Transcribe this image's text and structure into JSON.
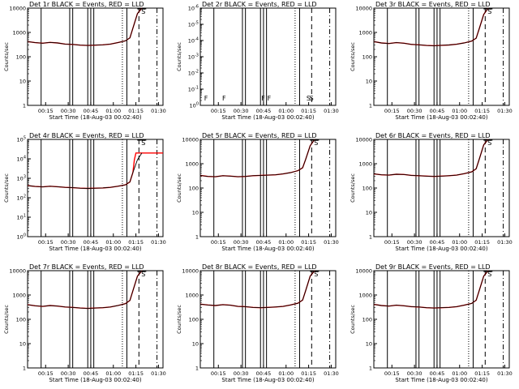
{
  "figure": {
    "xlabel": "Start Time (18-Aug-03 00:02:40)",
    "ylabel": "Counts/sec",
    "x_tick_labels": [
      "00:15",
      "00:30",
      "00:45",
      "01:00",
      "01:15",
      "01:30"
    ],
    "flag_labels": {
      "F": "F",
      "S": "S"
    },
    "colors": {
      "events": "#000000",
      "lld": "#ff0000"
    }
  },
  "chart_data": [
    {
      "type": "line",
      "title": "Det 1r BLACK = Events, RED = LLD",
      "y_scale": "log",
      "ylim": [
        1,
        10000
      ],
      "y_ticks": [
        "1",
        "10",
        "100",
        "1000",
        "10000"
      ],
      "series": [
        {
          "name": "Events",
          "color": "#000000",
          "x": [
            0,
            5,
            10,
            15,
            20,
            25,
            30,
            35,
            40,
            45,
            50,
            55,
            60,
            65,
            68,
            70,
            73,
            76
          ],
          "y": [
            420,
            380,
            360,
            390,
            370,
            330,
            320,
            300,
            290,
            300,
            310,
            330,
            380,
            450,
            600,
            1500,
            6000,
            12000
          ]
        },
        {
          "name": "LLD",
          "color": "#ff0000",
          "x": [
            0,
            5,
            10,
            15,
            20,
            25,
            30,
            35,
            40,
            45,
            50,
            55,
            60,
            65,
            68,
            70,
            73,
            76
          ],
          "y": [
            420,
            380,
            360,
            390,
            370,
            330,
            320,
            300,
            290,
            300,
            310,
            330,
            380,
            450,
            600,
            1500,
            6000,
            12000
          ]
        }
      ]
    },
    {
      "type": "line",
      "title": "Det 2r BLACK = Events, RED = LLD",
      "y_scale": "log",
      "ylim": [
        1,
        1e-06
      ],
      "y_ticks": [
        "10^0",
        "10^-1",
        "10^-2",
        "10^-3",
        "10^-4",
        "10^-5",
        "10^-6"
      ],
      "series": []
    },
    {
      "type": "line",
      "title": "Det 3r BLACK = Events, RED = LLD",
      "y_scale": "log",
      "ylim": [
        1,
        10000
      ],
      "y_ticks": [
        "1",
        "10",
        "100",
        "1000",
        "10000"
      ],
      "series": [
        {
          "name": "Events",
          "color": "#000000",
          "x": [
            0,
            5,
            10,
            15,
            20,
            25,
            30,
            35,
            40,
            45,
            50,
            55,
            60,
            65,
            68,
            70,
            73,
            76
          ],
          "y": [
            420,
            370,
            350,
            380,
            360,
            320,
            310,
            290,
            285,
            295,
            305,
            325,
            370,
            440,
            580,
            1400,
            5500,
            11000
          ]
        },
        {
          "name": "LLD",
          "color": "#ff0000",
          "x": [
            0,
            5,
            10,
            15,
            20,
            25,
            30,
            35,
            40,
            45,
            50,
            55,
            60,
            65,
            68,
            70,
            73,
            76
          ],
          "y": [
            420,
            370,
            350,
            380,
            360,
            320,
            310,
            290,
            285,
            295,
            305,
            325,
            370,
            440,
            580,
            1400,
            5500,
            11000
          ]
        }
      ]
    },
    {
      "type": "line",
      "title": "Det 4r BLACK = Events, RED = LLD",
      "y_scale": "log",
      "ylim": [
        1,
        100000
      ],
      "y_ticks": [
        "10^0",
        "10^1",
        "10^2",
        "10^3",
        "10^4",
        "10^5"
      ],
      "series": [
        {
          "name": "Events",
          "color": "#000000",
          "x": [
            0,
            5,
            10,
            15,
            20,
            25,
            30,
            35,
            40,
            45,
            50,
            55,
            60,
            65,
            68,
            70,
            73,
            76
          ],
          "y": [
            420,
            380,
            360,
            390,
            370,
            340,
            330,
            310,
            300,
            310,
            320,
            340,
            390,
            460,
            650,
            2000,
            9000,
            20000
          ]
        },
        {
          "name": "LLD",
          "color": "#ff0000",
          "x": [
            0,
            5,
            10,
            15,
            20,
            25,
            30,
            35,
            40,
            45,
            50,
            55,
            60,
            65,
            68,
            70,
            71,
            72,
            80,
            90
          ],
          "y": [
            420,
            380,
            360,
            390,
            370,
            340,
            330,
            310,
            300,
            310,
            320,
            340,
            390,
            460,
            650,
            2000,
            9000,
            20000,
            20000,
            20000
          ]
        }
      ]
    },
    {
      "type": "line",
      "title": "Det 5r BLACK = Events, RED = LLD",
      "y_scale": "log",
      "ylim": [
        1,
        10000
      ],
      "y_ticks": [
        "1",
        "10",
        "100",
        "1000",
        "10000"
      ],
      "series": [
        {
          "name": "Events",
          "color": "#000000",
          "x": [
            0,
            5,
            10,
            15,
            20,
            25,
            30,
            35,
            40,
            45,
            50,
            55,
            60,
            65,
            68,
            70,
            73,
            76
          ],
          "y": [
            330,
            300,
            290,
            320,
            310,
            290,
            300,
            320,
            330,
            340,
            350,
            380,
            430,
            520,
            680,
            1500,
            5500,
            11000
          ]
        },
        {
          "name": "LLD",
          "color": "#ff0000",
          "x": [
            0,
            5,
            10,
            15,
            20,
            25,
            30,
            35,
            40,
            45,
            50,
            55,
            60,
            65,
            68,
            70,
            73,
            76
          ],
          "y": [
            330,
            300,
            290,
            320,
            310,
            290,
            300,
            320,
            330,
            340,
            350,
            380,
            430,
            520,
            680,
            1500,
            5500,
            11000
          ]
        }
      ]
    },
    {
      "type": "line",
      "title": "Det 6r BLACK = Events, RED = LLD",
      "y_scale": "log",
      "ylim": [
        1,
        10000
      ],
      "y_ticks": [
        "1",
        "10",
        "100",
        "1000",
        "10000"
      ],
      "series": [
        {
          "name": "Events",
          "color": "#000000",
          "x": [
            0,
            5,
            10,
            15,
            20,
            25,
            30,
            35,
            40,
            45,
            50,
            55,
            60,
            65,
            68,
            70,
            73,
            76
          ],
          "y": [
            380,
            350,
            340,
            370,
            360,
            330,
            320,
            310,
            300,
            310,
            320,
            340,
            390,
            460,
            620,
            1500,
            6000,
            12000
          ]
        },
        {
          "name": "LLD",
          "color": "#ff0000",
          "x": [
            0,
            5,
            10,
            15,
            20,
            25,
            30,
            35,
            40,
            45,
            50,
            55,
            60,
            65,
            68,
            70,
            73,
            76
          ],
          "y": [
            380,
            350,
            340,
            370,
            360,
            330,
            320,
            310,
            300,
            310,
            320,
            340,
            390,
            460,
            620,
            1500,
            6000,
            12000
          ]
        }
      ]
    },
    {
      "type": "line",
      "title": "Det 7r BLACK = Events, RED = LLD",
      "y_scale": "log",
      "ylim": [
        1,
        10000
      ],
      "y_ticks": [
        "1",
        "10",
        "100",
        "1000",
        "10000"
      ],
      "series": [
        {
          "name": "Events",
          "color": "#000000",
          "x": [
            0,
            5,
            10,
            15,
            20,
            25,
            30,
            35,
            40,
            45,
            50,
            55,
            60,
            65,
            68,
            70,
            73,
            76
          ],
          "y": [
            400,
            360,
            340,
            370,
            350,
            320,
            310,
            290,
            280,
            290,
            300,
            320,
            370,
            440,
            600,
            1500,
            6000,
            12000
          ]
        },
        {
          "name": "LLD",
          "color": "#ff0000",
          "x": [
            0,
            5,
            10,
            15,
            20,
            25,
            30,
            35,
            40,
            45,
            50,
            55,
            60,
            65,
            68,
            70,
            73,
            76
          ],
          "y": [
            400,
            360,
            340,
            370,
            350,
            320,
            310,
            290,
            280,
            290,
            300,
            320,
            370,
            440,
            600,
            1500,
            6000,
            12000
          ]
        }
      ]
    },
    {
      "type": "line",
      "title": "Det 8r BLACK = Events, RED = LLD",
      "y_scale": "log",
      "ylim": [
        1,
        10000
      ],
      "y_ticks": [
        "1",
        "10",
        "100",
        "1000",
        "10000"
      ],
      "series": [
        {
          "name": "Events",
          "color": "#000000",
          "x": [
            0,
            5,
            10,
            15,
            20,
            25,
            30,
            35,
            40,
            45,
            50,
            55,
            60,
            65,
            68,
            70,
            73,
            76
          ],
          "y": [
            420,
            390,
            370,
            400,
            380,
            340,
            330,
            310,
            300,
            310,
            320,
            340,
            390,
            460,
            620,
            1500,
            6000,
            12000
          ]
        },
        {
          "name": "LLD",
          "color": "#ff0000",
          "x": [
            0,
            5,
            10,
            15,
            20,
            25,
            30,
            35,
            40,
            45,
            50,
            55,
            60,
            65,
            68,
            70,
            73,
            76
          ],
          "y": [
            420,
            390,
            370,
            400,
            380,
            340,
            330,
            310,
            300,
            310,
            320,
            340,
            390,
            460,
            620,
            1500,
            6000,
            12000
          ]
        }
      ]
    },
    {
      "type": "line",
      "title": "Det 9r BLACK = Events, RED = LLD",
      "y_scale": "log",
      "ylim": [
        1,
        10000
      ],
      "y_ticks": [
        "1",
        "10",
        "100",
        "1000",
        "10000"
      ],
      "series": [
        {
          "name": "Events",
          "color": "#000000",
          "x": [
            0,
            5,
            10,
            15,
            20,
            25,
            30,
            35,
            40,
            45,
            50,
            55,
            60,
            65,
            68,
            70,
            73,
            76
          ],
          "y": [
            410,
            370,
            350,
            380,
            360,
            330,
            320,
            300,
            290,
            300,
            310,
            330,
            380,
            450,
            610,
            1500,
            6000,
            12000
          ]
        },
        {
          "name": "LLD",
          "color": "#ff0000",
          "x": [
            0,
            5,
            10,
            15,
            20,
            25,
            30,
            35,
            40,
            45,
            50,
            55,
            60,
            65,
            68,
            70,
            73,
            76
          ],
          "y": [
            410,
            370,
            350,
            380,
            360,
            330,
            320,
            300,
            290,
            300,
            310,
            330,
            380,
            450,
            610,
            1500,
            6000,
            12000
          ]
        }
      ]
    }
  ]
}
